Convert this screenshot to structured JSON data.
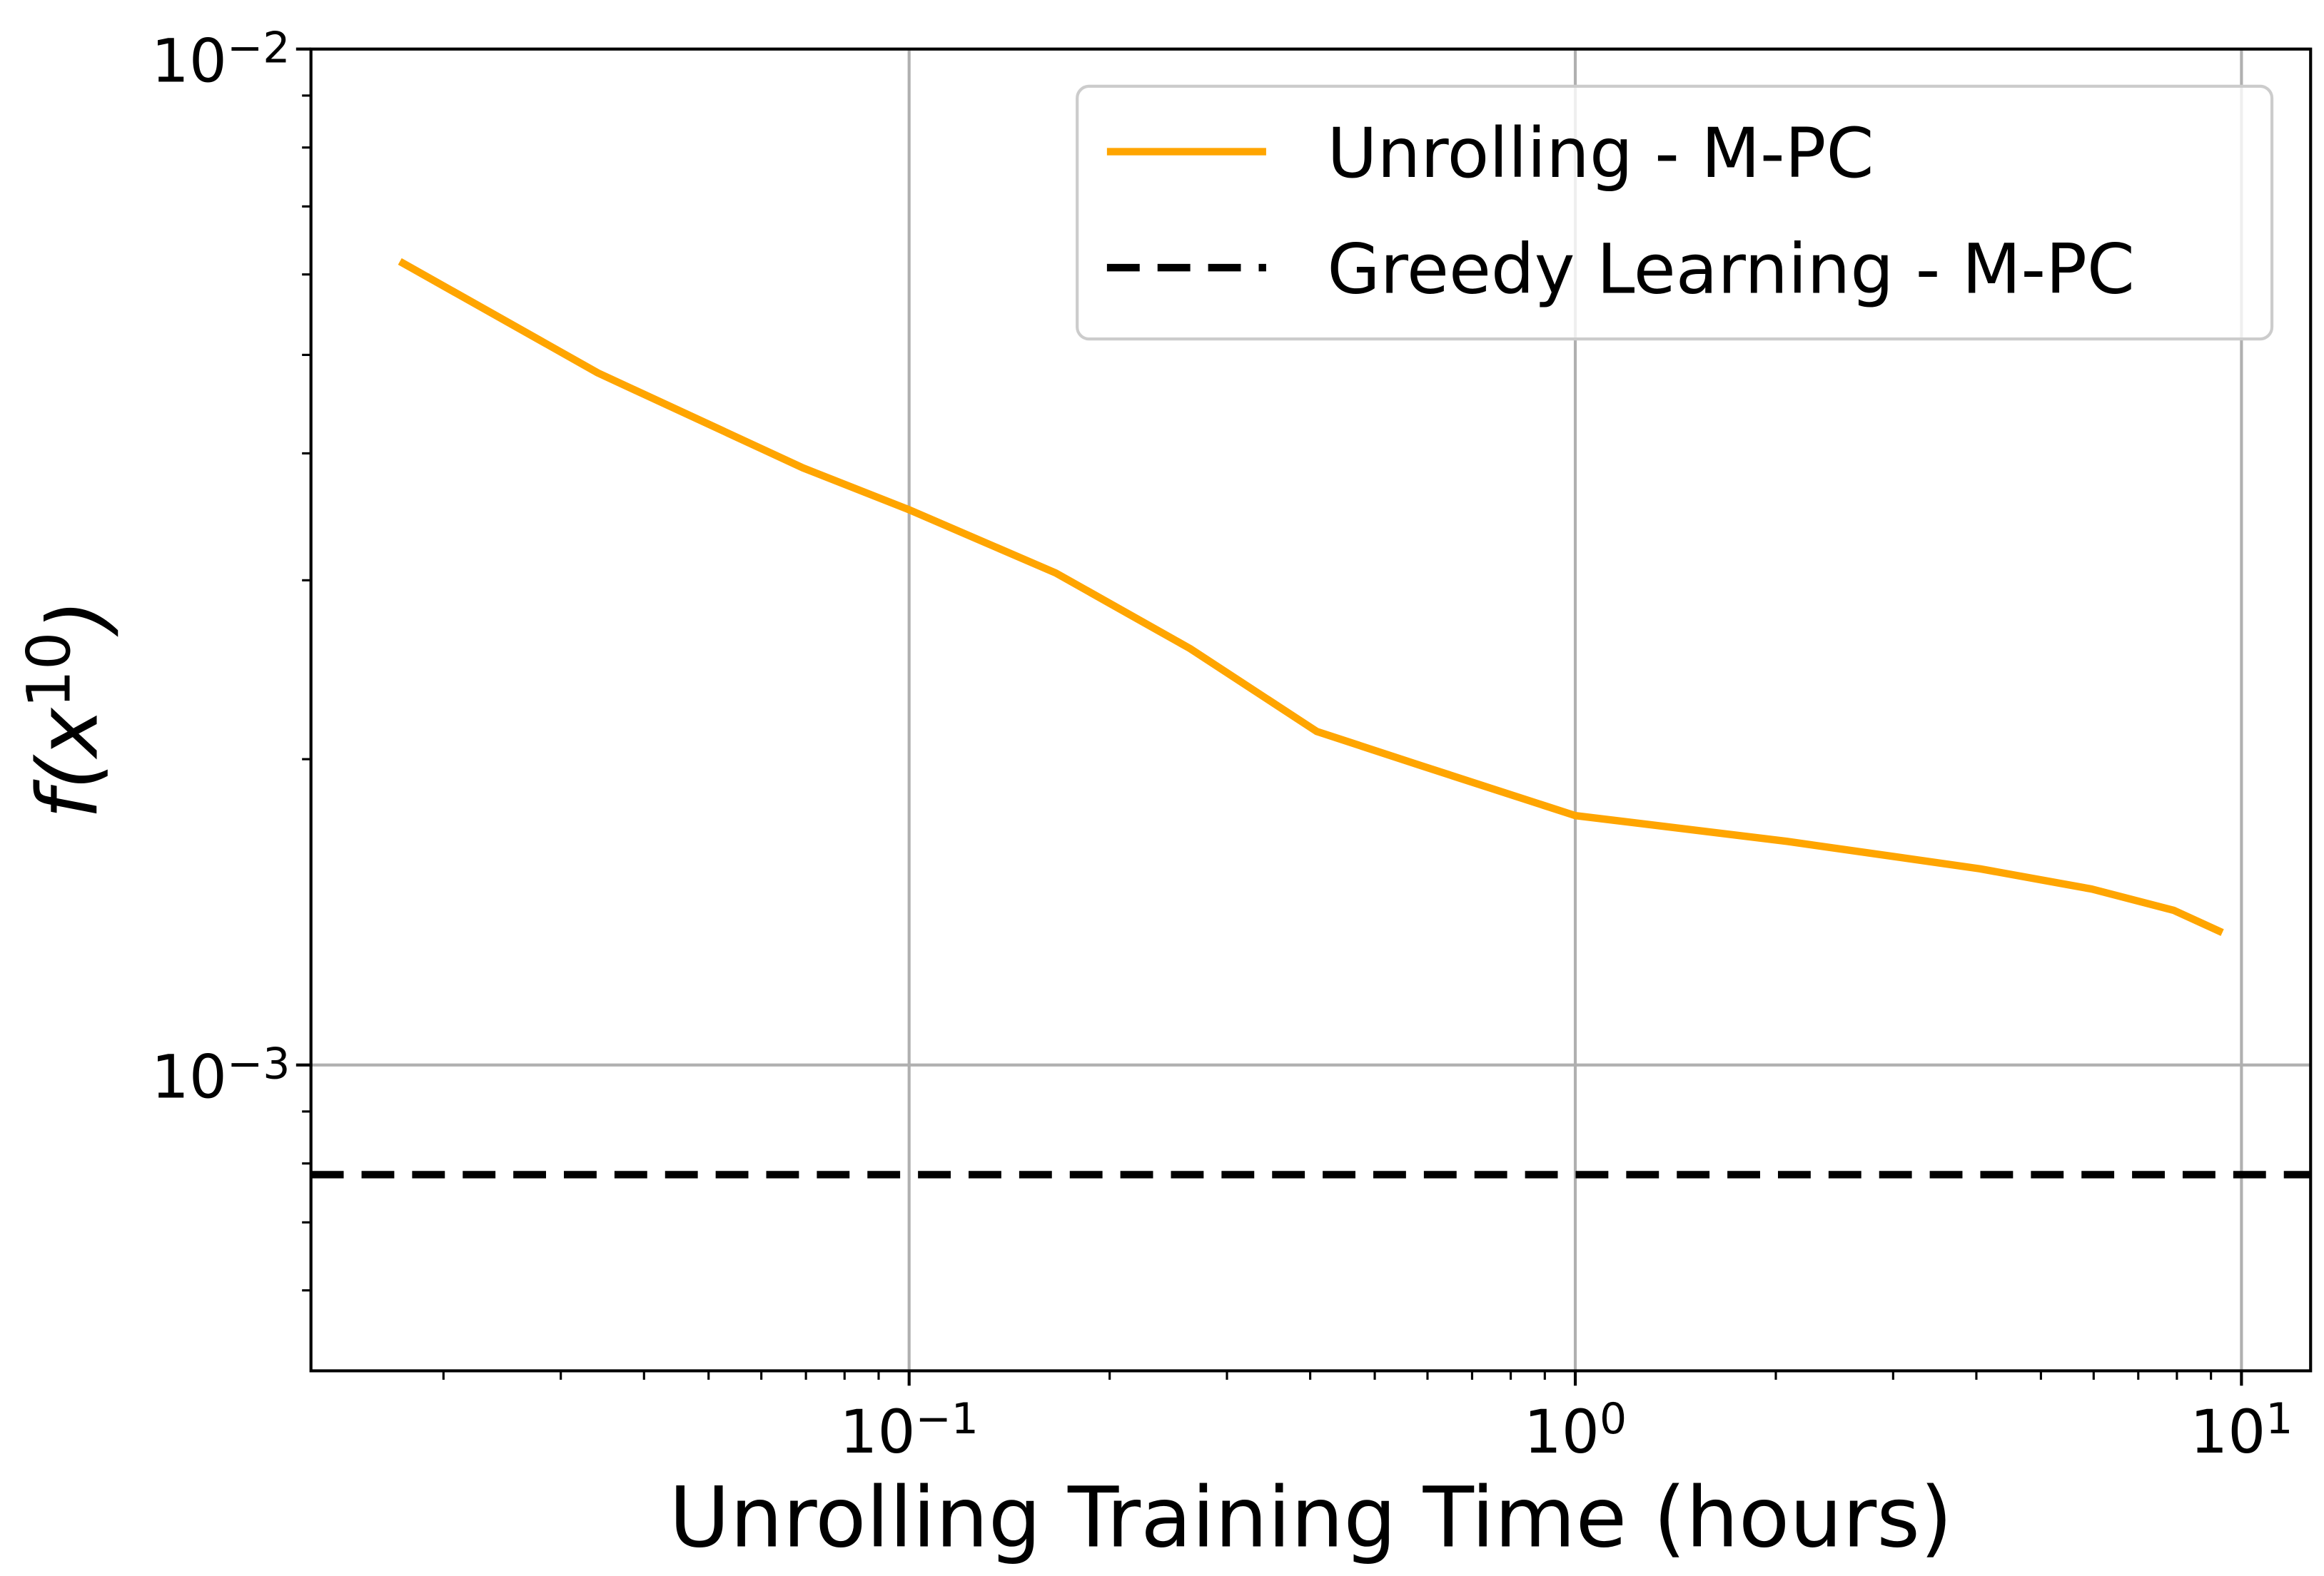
{
  "chart_data": {
    "type": "line",
    "xlabel": "Unrolling Training Time (hours)",
    "ylabel": "f(x10)",
    "xscale": "log",
    "yscale": "log",
    "xlim": [
      0.01265,
      12.7
    ],
    "ylim": [
      0.0005,
      0.01
    ],
    "xticks": [
      {
        "value": 0.1,
        "label": "10−1"
      },
      {
        "value": 1,
        "label": "100"
      },
      {
        "value": 10,
        "label": "101"
      }
    ],
    "yticks": [
      {
        "value": 0.001,
        "label": "10−3"
      },
      {
        "value": 0.01,
        "label": "10−2"
      }
    ],
    "xminorticks": [
      0.02,
      0.03,
      0.04,
      0.05,
      0.06,
      0.07,
      0.08,
      0.09,
      0.2,
      0.3,
      0.4,
      0.5,
      0.6,
      0.7,
      0.8,
      0.9,
      2,
      3,
      4,
      5,
      6,
      7,
      8,
      9
    ],
    "yminorticks": [
      0.0006,
      0.0007,
      0.0008,
      0.0009,
      0.002,
      0.003,
      0.004,
      0.005,
      0.006,
      0.007,
      0.008,
      0.009
    ],
    "grid": true,
    "legend": "upper right",
    "series": [
      {
        "name": "Unrolling - M-PC",
        "color": "#ffa500",
        "style": "solid",
        "x": [
          0.0172,
          0.0341,
          0.0693,
          0.1,
          0.166,
          0.264,
          0.409,
          0.588,
          1.0,
          2.08,
          4.05,
          5.96,
          7.91,
          9.36
        ],
        "values": [
          0.00618,
          0.0048,
          0.00387,
          0.00352,
          0.00305,
          0.00257,
          0.00213,
          0.00197,
          0.00176,
          0.00166,
          0.00156,
          0.00149,
          0.00142,
          0.00135
        ]
      },
      {
        "name": "Greedy Learning - M-PC",
        "color": "#000000",
        "style": "dashed",
        "hline": 0.00078
      }
    ]
  }
}
